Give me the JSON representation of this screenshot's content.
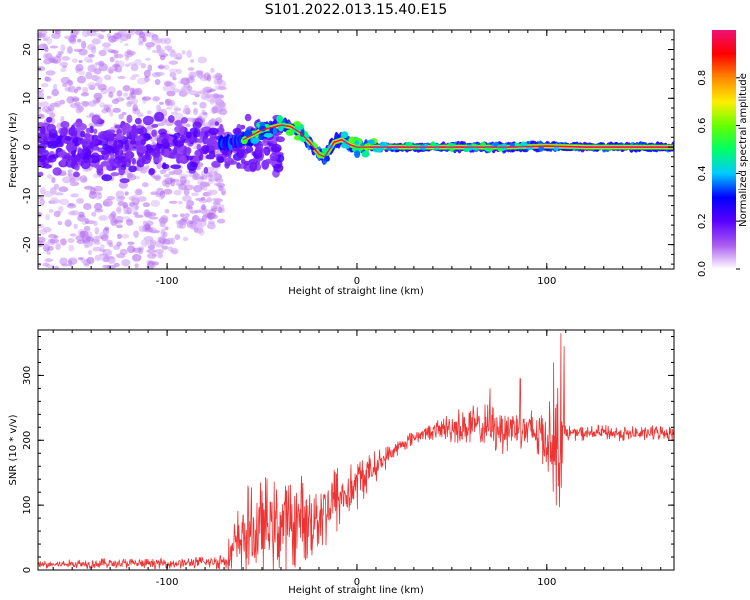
{
  "figure": {
    "title": "S101.2022.013.15.40.E15"
  },
  "chart_data": [
    {
      "type": "heatmap",
      "xlabel": "Height of straight line (km)",
      "ylabel": "Frequency (Hz)",
      "xlim": [
        -168,
        167
      ],
      "ylim": [
        -25,
        24
      ],
      "xticks": [
        {
          "value": -100,
          "label": "-100"
        },
        {
          "value": 0,
          "label": "0"
        },
        {
          "value": 100,
          "label": "100"
        }
      ],
      "yticks": [
        {
          "value": -20,
          "label": "-20"
        },
        {
          "value": -10,
          "label": "-10"
        },
        {
          "value": 0,
          "label": "0"
        },
        {
          "value": 10,
          "label": "10"
        },
        {
          "value": 20,
          "label": "20"
        }
      ],
      "description_points": {
        "signal_track": {
          "x": [
            -75,
            -60,
            -50,
            -40,
            -35,
            -30,
            -25,
            -20,
            -17,
            -12,
            -8,
            -4,
            0,
            20,
            40,
            60,
            80,
            100,
            120,
            140,
            167
          ],
          "y": [
            0.5,
            1.5,
            3.5,
            4.5,
            4.2,
            3.0,
            1.0,
            -1.5,
            -2.0,
            1.0,
            1.5,
            0.5,
            0.0,
            0.0,
            0.0,
            0.0,
            0.0,
            0.2,
            0.0,
            0.0,
            0.0
          ]
        },
        "noise_region": {
          "x_range": [
            -168,
            -75
          ],
          "freq_range": [
            -25,
            24
          ]
        }
      },
      "colorbar": {
        "label": "Normalized spectral amplitude",
        "range": [
          0,
          1
        ],
        "ticks": [
          {
            "value": 0.0,
            "label": "0.0"
          },
          {
            "value": 0.2,
            "label": "0.2"
          },
          {
            "value": 0.4,
            "label": "0.4"
          },
          {
            "value": 0.6,
            "label": "0.6"
          },
          {
            "value": 0.8,
            "label": "0.8"
          }
        ],
        "colors": [
          "#ffffff",
          "#ab5cf0",
          "#5a00ff",
          "#0000ff",
          "#00ccff",
          "#00ff66",
          "#66ff00",
          "#ffee00",
          "#ff8800",
          "#ff0000",
          "#ee1177"
        ]
      }
    },
    {
      "type": "line",
      "xlabel": "Height of straight line (km)",
      "ylabel": "SNR (10 * v/v)",
      "xlim": [
        -168,
        167
      ],
      "ylim": [
        0,
        370
      ],
      "color": "#ee3333",
      "xticks": [
        {
          "value": -100,
          "label": "-100"
        },
        {
          "value": 0,
          "label": "0"
        },
        {
          "value": 100,
          "label": "100"
        }
      ],
      "yticks": [
        {
          "value": 0,
          "label": "0"
        },
        {
          "value": 100,
          "label": "100"
        },
        {
          "value": 200,
          "label": "200"
        },
        {
          "value": 300,
          "label": "300"
        }
      ],
      "trend": {
        "x": [
          -168,
          -140,
          -100,
          -75,
          -70,
          -66,
          -62,
          -58,
          -54,
          -50,
          -46,
          -42,
          -38,
          -34,
          -30,
          -26,
          -22,
          -18,
          -14,
          -10,
          -6,
          -2,
          2,
          6,
          10,
          14,
          18,
          22,
          26,
          30,
          34,
          38,
          42,
          46,
          50,
          54,
          58,
          62,
          66,
          70,
          74,
          78,
          82,
          86,
          90,
          94,
          98,
          101,
          104,
          106,
          107,
          108,
          110,
          120,
          130,
          140,
          150,
          160,
          167
        ],
        "y": [
          8,
          10,
          10,
          12,
          15,
          25,
          45,
          60,
          55,
          65,
          70,
          65,
          75,
          70,
          80,
          75,
          85,
          90,
          100,
          110,
          115,
          125,
          140,
          150,
          160,
          170,
          180,
          190,
          198,
          205,
          210,
          212,
          215,
          218,
          220,
          222,
          220,
          222,
          220,
          222,
          220,
          218,
          220,
          218,
          215,
          212,
          210,
          200,
          190,
          180,
          200,
          210,
          212,
          210,
          212,
          210,
          210,
          212,
          210
        ],
        "noise": [
          6,
          8,
          8,
          10,
          15,
          40,
          60,
          75,
          70,
          80,
          80,
          70,
          75,
          70,
          70,
          70,
          65,
          65,
          60,
          55,
          50,
          45,
          40,
          30,
          25,
          20,
          15,
          12,
          12,
          12,
          12,
          12,
          15,
          20,
          25,
          30,
          35,
          35,
          35,
          40,
          40,
          40,
          40,
          40,
          40,
          45,
          50,
          60,
          80,
          120,
          120,
          60,
          12,
          12,
          12,
          12,
          12,
          12,
          12
        ]
      },
      "spikes": [
        {
          "x": 107.5,
          "y": 365
        },
        {
          "x": 109,
          "y": 345
        },
        {
          "x": 103.5,
          "y": 320
        },
        {
          "x": 86,
          "y": 295
        },
        {
          "x": 70,
          "y": 280
        }
      ]
    }
  ]
}
